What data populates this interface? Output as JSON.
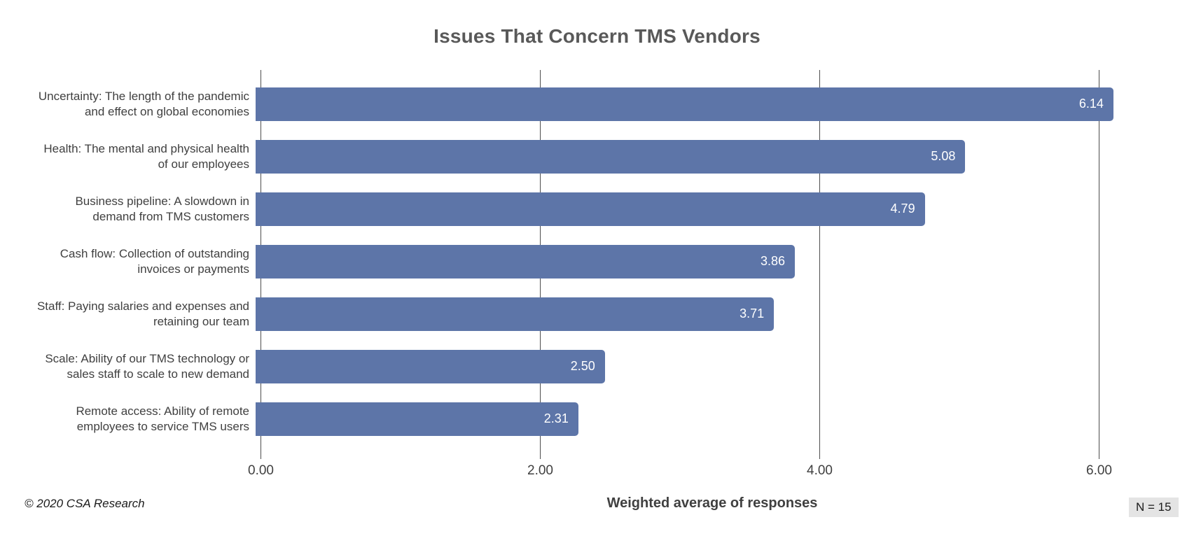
{
  "chart_data": {
    "type": "bar",
    "orientation": "horizontal",
    "title": "Issues That Concern TMS Vendors",
    "xlabel": "Weighted average of responses",
    "xlim": [
      0,
      6.7
    ],
    "grid": true,
    "legend": "none",
    "xticks": [
      {
        "value": 0,
        "label": "0.00"
      },
      {
        "value": 2,
        "label": "2.00"
      },
      {
        "value": 4,
        "label": "4.00"
      },
      {
        "value": 6,
        "label": "6.00"
      }
    ],
    "categories": [
      "Uncertainty: The length of the pandemic and effect on global economies",
      "Health: The mental and physical health of our employees",
      "Business pipeline: A slowdown in demand from TMS customers",
      "Cash flow: Collection of outstanding invoices or payments",
      "Staff: Paying salaries and expenses and retaining our team",
      "Scale: Ability of our TMS technology or sales staff to scale to new demand",
      "Remote access: Ability of remote employees to service TMS users"
    ],
    "category_lines": [
      [
        "Uncertainty: The length of the pandemic",
        "and effect on global economies"
      ],
      [
        "Health: The mental and physical health",
        "of our employees"
      ],
      [
        "Business pipeline: A slowdown in",
        "demand from TMS customers"
      ],
      [
        "Cash flow: Collection of outstanding",
        "invoices or payments"
      ],
      [
        "Staff: Paying salaries and expenses and",
        "retaining our team"
      ],
      [
        "Scale: Ability of our TMS technology or",
        "sales staff to scale to new demand"
      ],
      [
        "Remote access: Ability of remote",
        "employees to service TMS users"
      ]
    ],
    "values": [
      6.14,
      5.08,
      4.79,
      3.86,
      3.71,
      2.5,
      2.31
    ],
    "value_labels": [
      "6.14",
      "5.08",
      "4.79",
      "3.86",
      "3.71",
      "2.50",
      "2.31"
    ]
  },
  "footer": {
    "copyright": "© 2020 CSA Research",
    "n_label": "N = 15"
  },
  "colors": {
    "bar": "#5d75a8",
    "title": "#595959",
    "label": "#404040",
    "gridline": "#4d4d4d",
    "value_text": "#ffffff",
    "badge_bg": "#e4e4e4"
  }
}
